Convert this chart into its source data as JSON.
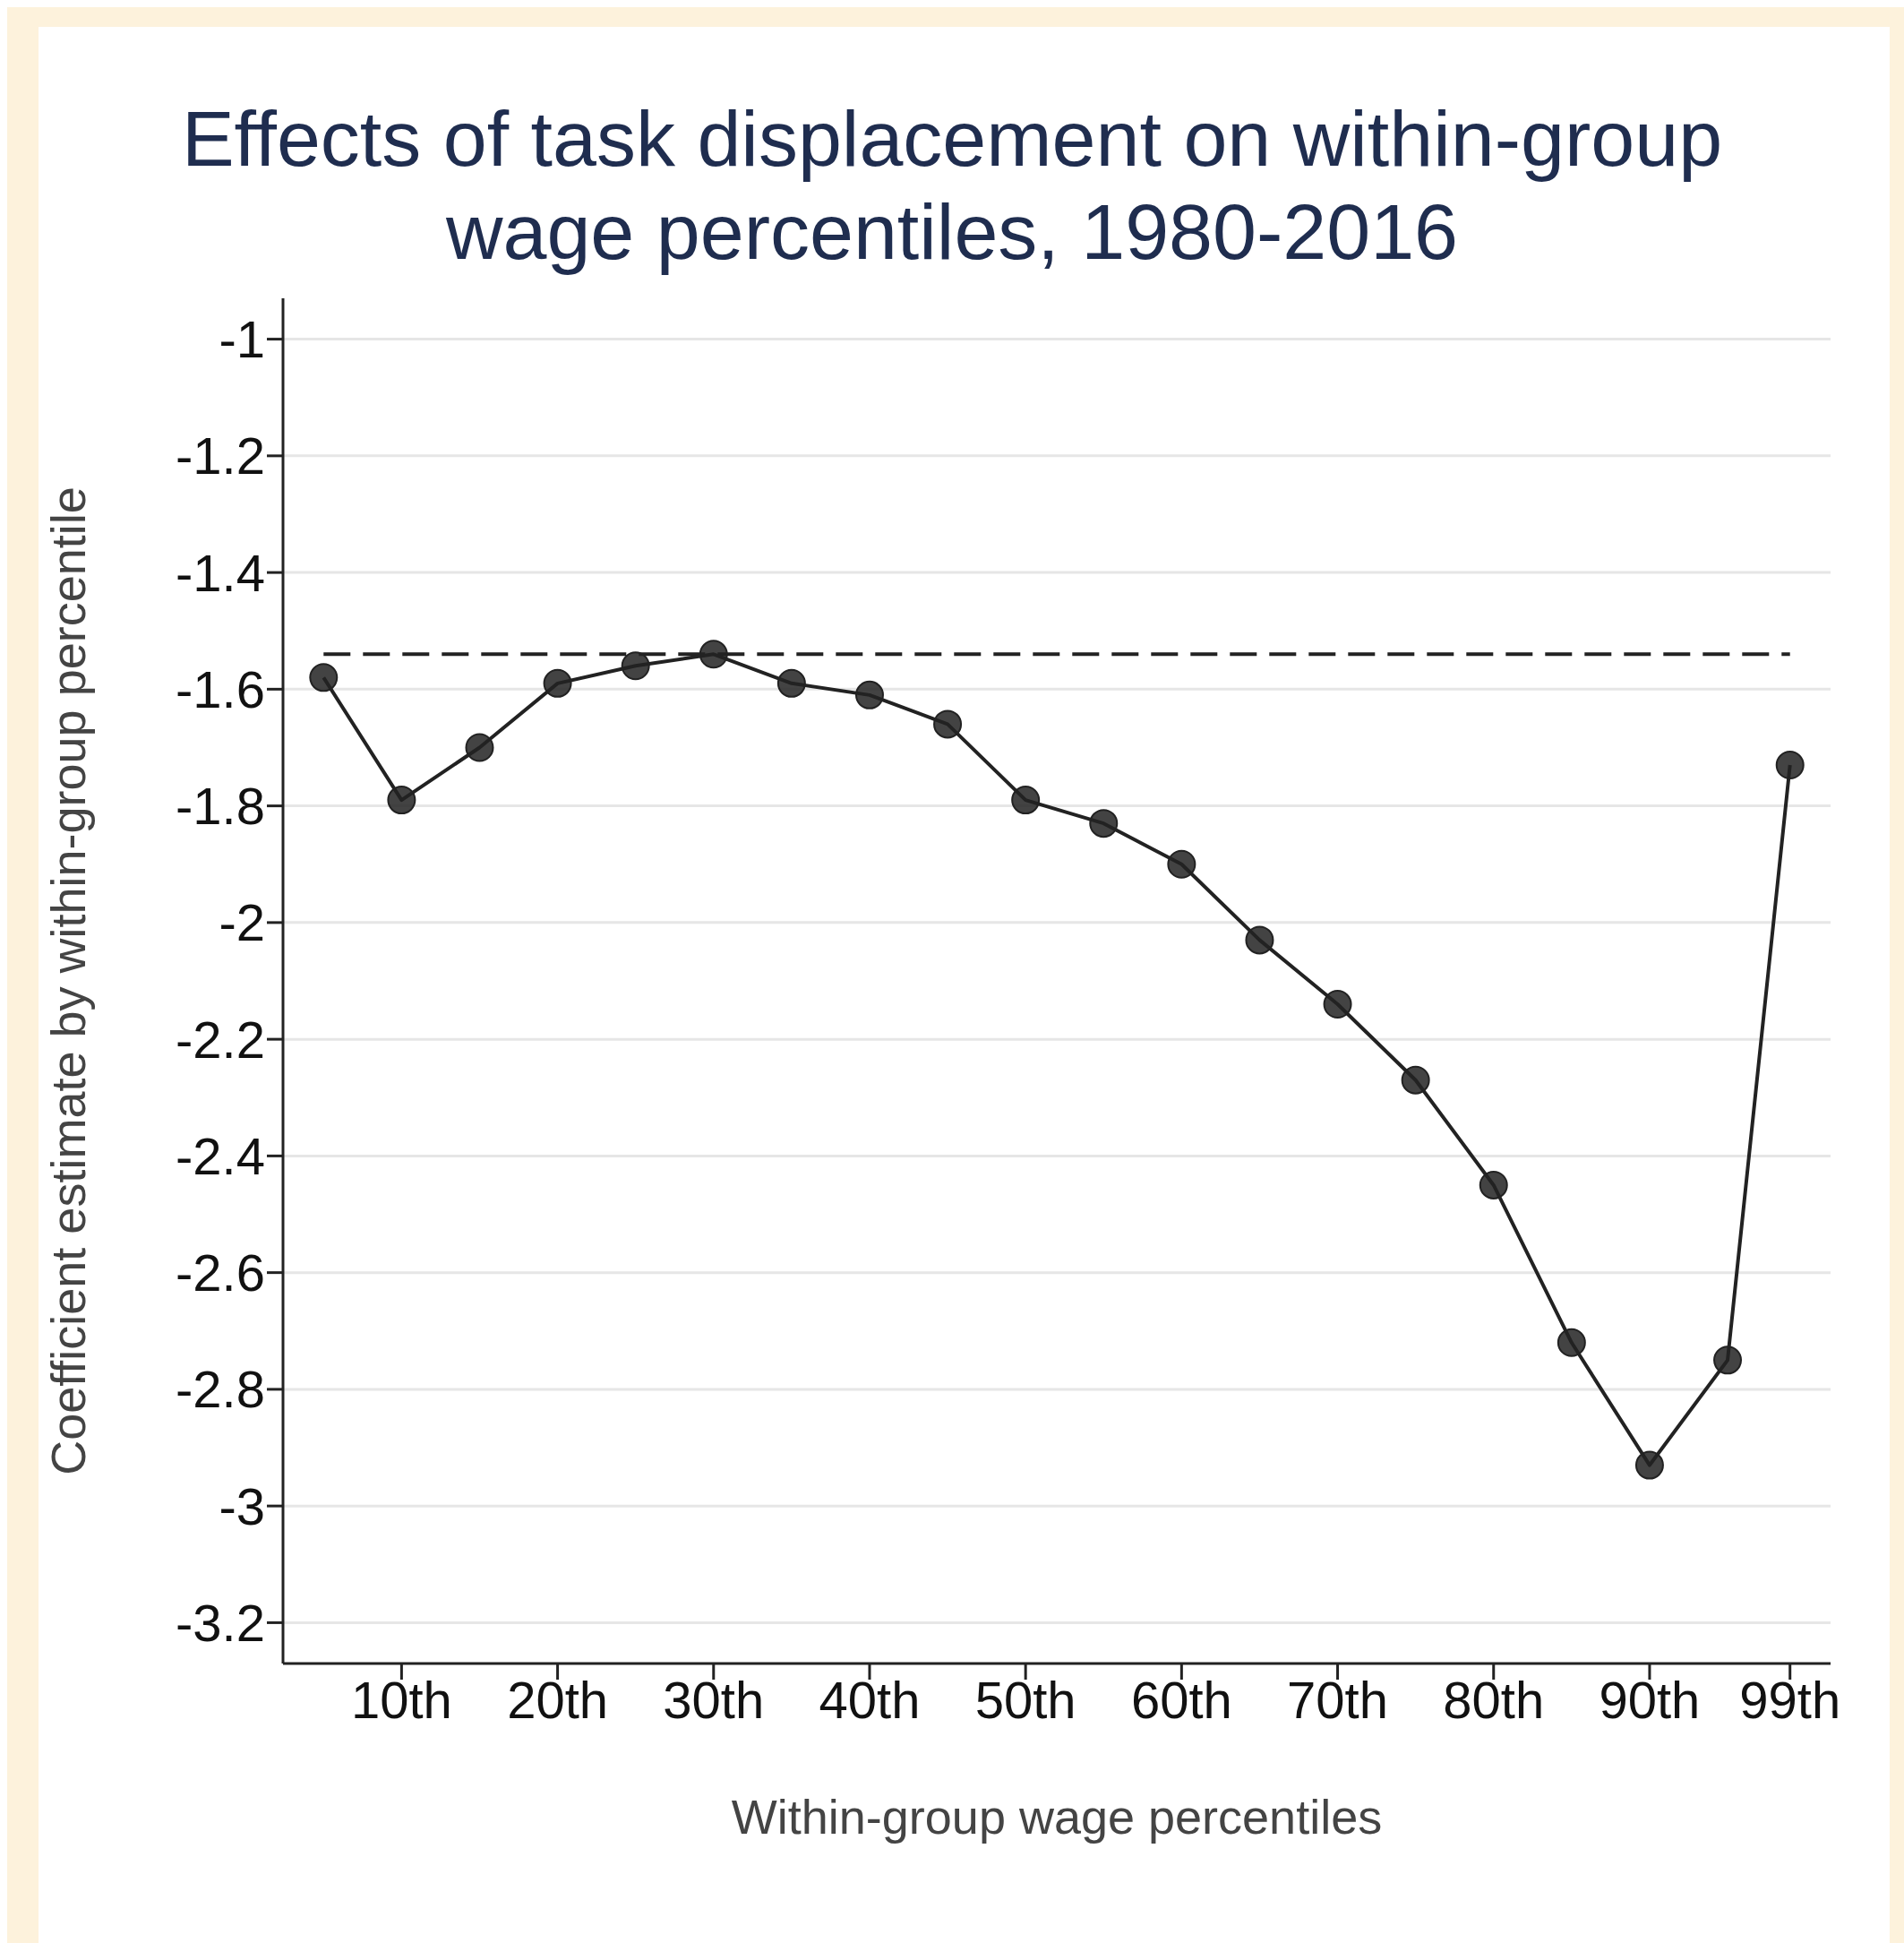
{
  "chart_data": {
    "type": "line",
    "title": "Effects of task displacement on within-group wage percentiles, 1980-2016",
    "xlabel": "Within-group wage percentiles",
    "ylabel": "Coefficient estimate by within-group percentile",
    "x": [
      5,
      10,
      15,
      20,
      25,
      30,
      35,
      40,
      45,
      50,
      55,
      60,
      65,
      70,
      75,
      80,
      85,
      90,
      95,
      99
    ],
    "series": [
      {
        "color": "#222222",
        "values": [
          -1.58,
          -1.79,
          -1.7,
          -1.59,
          -1.56,
          -1.54,
          -1.59,
          -1.61,
          -1.66,
          -1.79,
          -1.83,
          -1.9,
          -2.03,
          -2.14,
          -2.27,
          -2.45,
          -2.72,
          -2.93,
          -2.75,
          -1.73
        ]
      }
    ],
    "xlim": [
      2.4,
      101.6
    ],
    "xticks": [
      {
        "value": 10,
        "label": "10th"
      },
      {
        "value": 20,
        "label": "20th"
      },
      {
        "value": 30,
        "label": "30th"
      },
      {
        "value": 40,
        "label": "40th"
      },
      {
        "value": 50,
        "label": "50th"
      },
      {
        "value": 60,
        "label": "60th"
      },
      {
        "value": 70,
        "label": "70th"
      },
      {
        "value": 80,
        "label": "80th"
      },
      {
        "value": 90,
        "label": "90th"
      },
      {
        "value": 99,
        "label": "99th"
      }
    ],
    "ylim": [
      -3.27,
      -0.93
    ],
    "yticks": [
      -3.2,
      -3,
      -2.8,
      -2.6,
      -2.4,
      -2.2,
      -2,
      -1.8,
      -1.6,
      -1.4,
      -1.2,
      -1
    ],
    "ref_lines": [
      {
        "axis": "y",
        "value": -1.54,
        "color": "#222222",
        "line_style": "dashed"
      }
    ],
    "grid": "y",
    "marker": "circle",
    "line_style": "solid",
    "legend": false
  }
}
